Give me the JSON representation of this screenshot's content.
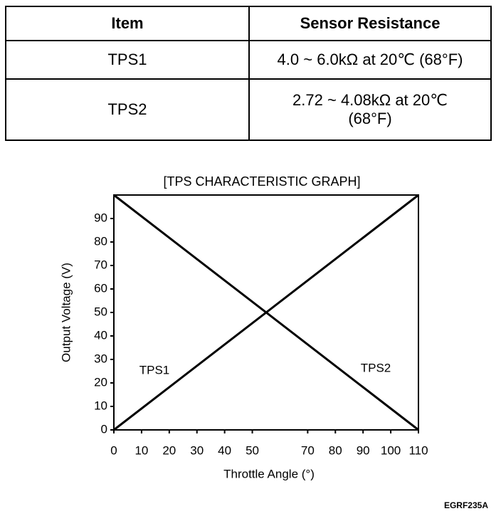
{
  "table": {
    "header": [
      "Item",
      "Sensor Resistance"
    ],
    "rows": [
      [
        "TPS1",
        "4.0 ~ 6.0kΩ at 20℃ (68°F)"
      ],
      [
        "TPS2",
        "2.72 ~ 4.08kΩ at 20℃ (68°F)"
      ]
    ]
  },
  "chart_data": {
    "type": "line",
    "title": "[TPS CHARACTERISTIC GRAPH]",
    "x_label": "Throttle Angle (°)",
    "y_label": "Output Voltage (V)",
    "x": [
      0,
      110
    ],
    "series": [
      {
        "name": "TPS1",
        "color": "#000000",
        "values": [
          0,
          100
        ]
      },
      {
        "name": "TPS2",
        "color": "#000000",
        "values": [
          100,
          0
        ]
      }
    ],
    "xlim": [
      0,
      110
    ],
    "xticks": [
      0,
      10,
      20,
      30,
      40,
      50,
      70,
      80,
      90,
      100,
      110
    ],
    "ylim": [
      0,
      100
    ],
    "yticks": [
      0,
      10,
      20,
      30,
      40,
      50,
      60,
      70,
      80,
      90
    ],
    "grid": false
  },
  "figure_code": "EGRF235A"
}
